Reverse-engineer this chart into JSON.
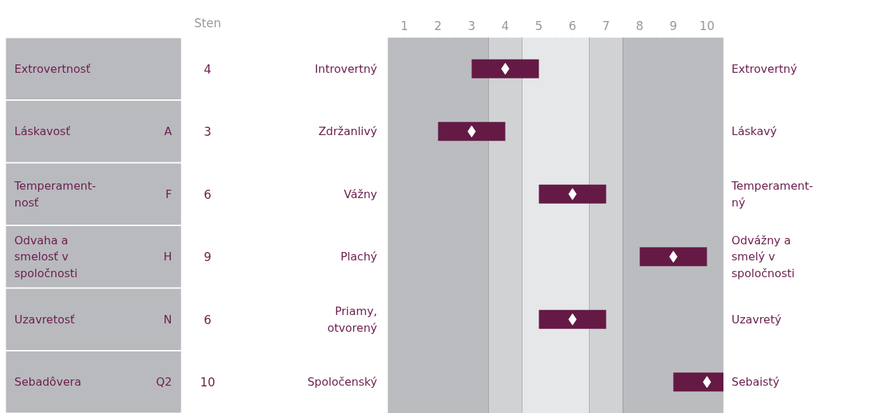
{
  "chart_data": {
    "type": "bar",
    "orientation": "horizontal",
    "categories": [
      "Introvertný",
      "Zdržanlivý",
      "Vážny",
      "Plachý",
      "Priamy,\notvorený",
      "Spoločenský"
    ],
    "xlim": [
      0.5,
      10.5
    ],
    "xticks": [
      1,
      2,
      3,
      4,
      5,
      6,
      7,
      8,
      9,
      10,
      {
        "value": 1.5,
        "label": null
      },
      {
        "value": 2.5,
        "label": null
      },
      {
        "value": 3.5,
        "label": null
      },
      {
        "value": 4.5,
        "label": null
      },
      {
        "value": 5.5,
        "label": null
      },
      {
        "value": 6.5,
        "label": null
      },
      {
        "value": 7.5,
        "label": null
      },
      {
        "value": 8.5,
        "label": null
      },
      {
        "value": 9.5,
        "label": null
      }
    ],
    "grid": "x",
    "bands": [
      {
        "axis": "x",
        "from": 0.5,
        "to": 3.5,
        "color": "#bbbcc0"
      },
      {
        "axis": "x",
        "from": 3.5,
        "to": 4.5,
        "color": "#d1d2d4"
      },
      {
        "axis": "x",
        "from": 4.5,
        "to": 6.5,
        "color": "#e6e7e9"
      },
      {
        "axis": "x",
        "from": 6.5,
        "to": 7.5,
        "color": "#d1d2d4"
      },
      {
        "axis": "x",
        "from": 7.5,
        "to": 10.5,
        "color": "#bbbcc0"
      }
    ],
    "annotations": [
      "Sten",
      "Extrovertnosť",
      "Láskavosť",
      "Temperament-\nnosť",
      "Odvaha a\nsmelosť v\nspoločnosti",
      "Uzavretosť",
      "Sebadôvera",
      "Extrovertný",
      "Láskavý",
      "Temperament-\nný",
      "Odvážny a\nsmelý v\nspoločnosti",
      "Uzavretý",
      "Sebaistý",
      "4",
      "3",
      "6",
      "9",
      "6",
      "10",
      "A",
      "F",
      "H",
      "N",
      "Q2"
    ],
    "series": [
      {
        "type": "bar",
        "color": "#641a45",
        "base": [
          3,
          2,
          5,
          8,
          5,
          9
        ],
        "values": [
          2,
          2,
          2,
          2,
          2,
          1.5
        ]
      },
      {
        "type": "scatter",
        "color": "#ffffff",
        "marker": "diamond",
        "values": [
          4,
          3,
          6,
          9,
          6,
          10
        ]
      }
    ]
  }
}
